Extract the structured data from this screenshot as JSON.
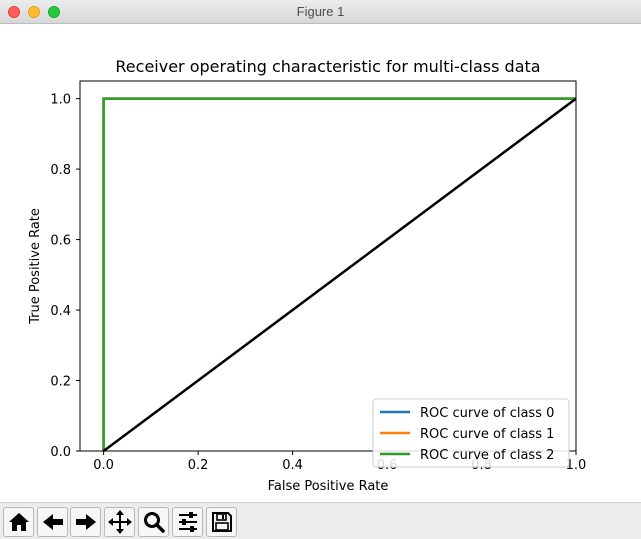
{
  "window": {
    "title": "Figure 1"
  },
  "chart_data": {
    "type": "line",
    "title": "Receiver operating characteristic for multi-class data",
    "xlabel": "False Positive Rate",
    "ylabel": "True Positive Rate",
    "xlim": [
      -0.05,
      1.0
    ],
    "ylim": [
      0.0,
      1.05
    ],
    "xticks": [
      "0.0",
      "0.2",
      "0.4",
      "0.6",
      "0.8",
      "1.0"
    ],
    "yticks": [
      "0.0",
      "0.2",
      "0.4",
      "0.6",
      "0.8",
      "1.0"
    ],
    "legend_position": "lower-right",
    "series": [
      {
        "name": "ROC curve of class 0",
        "color": "#1f77b4",
        "x": [
          0.0,
          0.0,
          1.0
        ],
        "y": [
          0.0,
          1.0,
          1.0
        ]
      },
      {
        "name": "ROC curve of class 1",
        "color": "#ff7f0e",
        "x": [
          0.0,
          0.0,
          1.0
        ],
        "y": [
          0.0,
          1.0,
          1.0
        ]
      },
      {
        "name": "ROC curve of class 2",
        "color": "#2ca02c",
        "x": [
          0.0,
          0.0,
          1.0
        ],
        "y": [
          0.0,
          1.0,
          1.0
        ]
      }
    ],
    "reference_line": {
      "color": "#000000",
      "x": [
        0.0,
        1.0
      ],
      "y": [
        0.0,
        1.0
      ]
    }
  },
  "toolbar": {
    "buttons": [
      {
        "icon": "home-icon"
      },
      {
        "icon": "back-arrow-icon"
      },
      {
        "icon": "forward-arrow-icon"
      },
      {
        "icon": "pan-icon"
      },
      {
        "icon": "zoom-icon"
      },
      {
        "icon": "configure-subplots-icon"
      },
      {
        "icon": "save-icon"
      }
    ]
  }
}
